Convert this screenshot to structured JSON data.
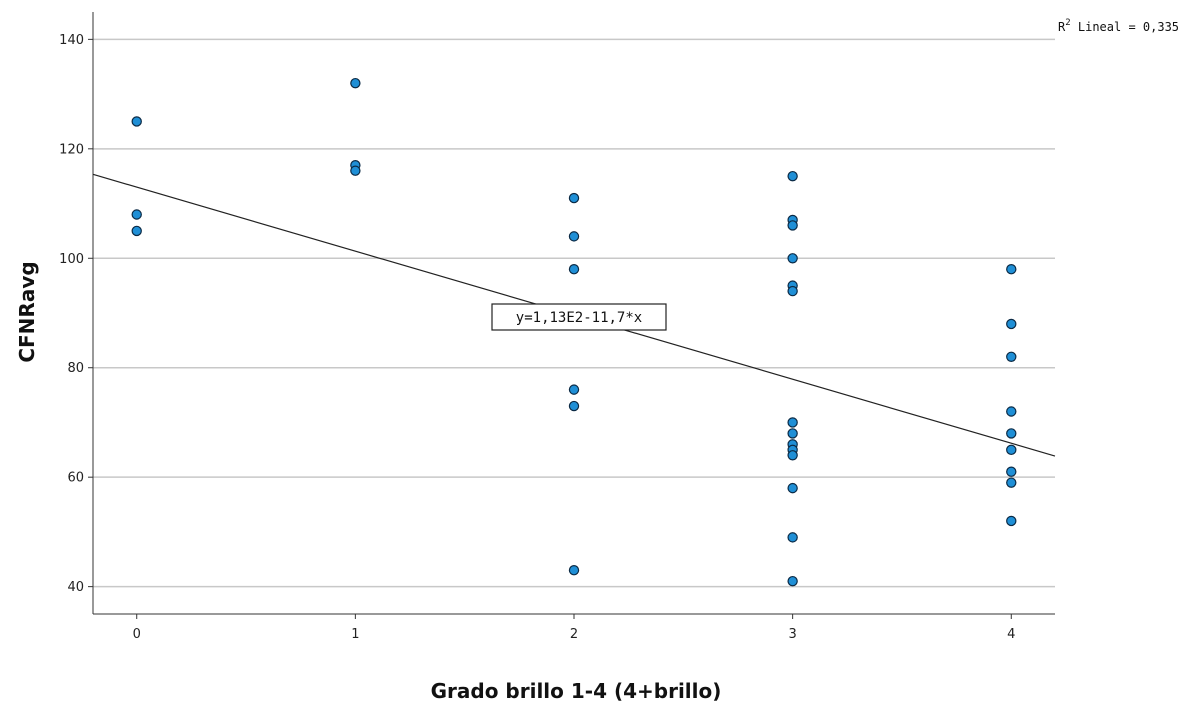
{
  "chart_data": {
    "type": "scatter",
    "xlabel": "Grado brillo 1-4 (4+brillo)",
    "ylabel": "CFNRavg",
    "xlim": [
      -0.2,
      4.2
    ],
    "ylim": [
      35,
      145
    ],
    "x_ticks": [
      "0",
      "1",
      "2",
      "3",
      "4"
    ],
    "y_ticks": [
      "40",
      "60",
      "80",
      "100",
      "120",
      "140"
    ],
    "grid": "horizontal",
    "marker_color": "#1f8fd6",
    "marker_edge_color": "#0b2a45",
    "line_color": "#222222",
    "points": [
      {
        "x": 0,
        "y": 125
      },
      {
        "x": 0,
        "y": 108
      },
      {
        "x": 0,
        "y": 105
      },
      {
        "x": 1,
        "y": 132
      },
      {
        "x": 1,
        "y": 117
      },
      {
        "x": 1,
        "y": 116
      },
      {
        "x": 2,
        "y": 111
      },
      {
        "x": 2,
        "y": 104
      },
      {
        "x": 2,
        "y": 98
      },
      {
        "x": 2,
        "y": 76
      },
      {
        "x": 2,
        "y": 73
      },
      {
        "x": 2,
        "y": 43
      },
      {
        "x": 3,
        "y": 115
      },
      {
        "x": 3,
        "y": 107
      },
      {
        "x": 3,
        "y": 106
      },
      {
        "x": 3,
        "y": 100
      },
      {
        "x": 3,
        "y": 95
      },
      {
        "x": 3,
        "y": 94
      },
      {
        "x": 3,
        "y": 70
      },
      {
        "x": 3,
        "y": 68
      },
      {
        "x": 3,
        "y": 66
      },
      {
        "x": 3,
        "y": 65
      },
      {
        "x": 3,
        "y": 64
      },
      {
        "x": 3,
        "y": 58
      },
      {
        "x": 3,
        "y": 49
      },
      {
        "x": 3,
        "y": 41
      },
      {
        "x": 4,
        "y": 98
      },
      {
        "x": 4,
        "y": 88
      },
      {
        "x": 4,
        "y": 82
      },
      {
        "x": 4,
        "y": 72
      },
      {
        "x": 4,
        "y": 68
      },
      {
        "x": 4,
        "y": 65
      },
      {
        "x": 4,
        "y": 61
      },
      {
        "x": 4,
        "y": 59
      },
      {
        "x": 4,
        "y": 52
      }
    ],
    "fit_line": {
      "intercept": 113,
      "slope": -11.7,
      "label": "y=1,13E2-11,7*x"
    },
    "r2": {
      "prefix": "R",
      "superscript": "2",
      "text": " Lineal = 0,335"
    }
  }
}
